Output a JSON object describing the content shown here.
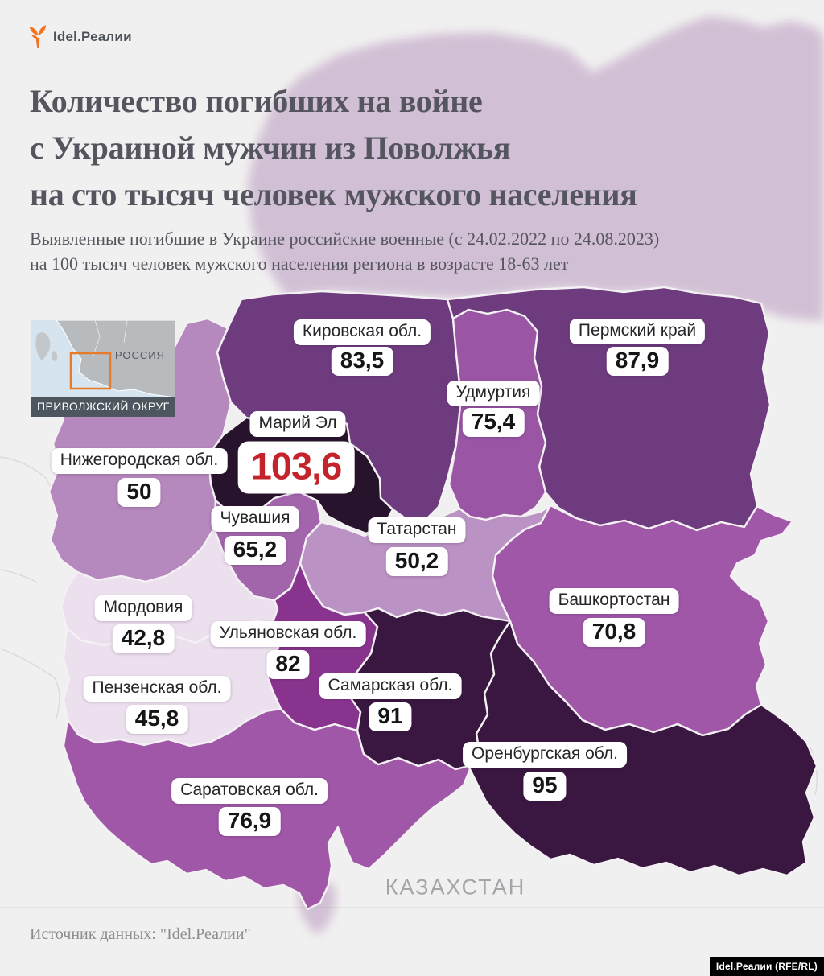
{
  "logo": {
    "text": "Idel.Реалии",
    "icon": "torch-icon",
    "icon_color": "#f4711f"
  },
  "title": {
    "lines": [
      "Количество погибших на войне",
      "с Украиной мужчин из Поволжья",
      "на сто тысяч человек мужского населения"
    ]
  },
  "subtitle": {
    "lines": [
      "Выявленные погибшие в Украине российские военные (с 24.02.2022 по 24.08.2023)",
      "на 100 тысяч человек мужского населения региона в возрасте 18-63 лет"
    ]
  },
  "inset": {
    "country_label": "РОССИЯ",
    "district_label": "ПРИВОЛЖСКИЙ ОКРУГ",
    "highlight_color": "#e87b27"
  },
  "map": {
    "regions": [
      {
        "id": "nizhegorodskaya",
        "name": "Нижегородская обл.",
        "value": "50",
        "color": "#b588be"
      },
      {
        "id": "mordovia",
        "name": "Мордовия",
        "value": "42,8",
        "color": "#ecdfee"
      },
      {
        "id": "penzenskaya",
        "name": "Пензенская обл.",
        "value": "45,8",
        "color": "#ecdfee"
      },
      {
        "id": "saratovskaya",
        "name": "Саратовская обл.",
        "value": "76,9",
        "color": "#a057a8"
      },
      {
        "id": "kirovskaya",
        "name": "Кировская обл.",
        "value": "83,5",
        "color": "#6e3c7e"
      },
      {
        "id": "permsky",
        "name": "Пермский край",
        "value": "87,9",
        "color": "#6e3c7e"
      },
      {
        "id": "udmurtia",
        "name": "Удмуртия",
        "value": "75,4",
        "color": "#9a55a4"
      },
      {
        "id": "bashkortostan",
        "name": "Башкортостан",
        "value": "70,8",
        "color": "#a057a8"
      },
      {
        "id": "tatarstan",
        "name": "Татарстан",
        "value": "50,2",
        "color": "#bb92c4"
      },
      {
        "id": "orenburgskaya",
        "name": "Оренбургская обл.",
        "value": "95",
        "color": "#391740"
      },
      {
        "id": "samarskaya",
        "name": "Самарская обл.",
        "value": "91",
        "color": "#391740"
      },
      {
        "id": "ulyanovskaya",
        "name": "Ульяновская обл.",
        "value": "82",
        "color": "#88348f"
      },
      {
        "id": "chuvashia",
        "name": "Чувашия",
        "value": "65,2",
        "color": "#a265ab"
      },
      {
        "id": "mariel",
        "name": "Марий Эл",
        "value": "103,6",
        "color": "#28132c",
        "hero": true,
        "value_color": "#c4232b"
      }
    ],
    "neighbor_label": "КАЗАХСТАН"
  },
  "chart_data": {
    "type": "choropleth",
    "title": "Количество погибших на войне с Украиной мужчин из Поволжья на сто тысяч человек мужского населения",
    "categories": [
      "Кировская обл.",
      "Пермский край",
      "Удмуртия",
      "Марий Эл",
      "Нижегородская обл.",
      "Чувашия",
      "Татарстан",
      "Башкортостан",
      "Мордовия",
      "Ульяновская обл.",
      "Пензенская обл.",
      "Самарская обл.",
      "Оренбургская обл.",
      "Саратовская обл."
    ],
    "values": [
      83.5,
      87.9,
      75.4,
      103.6,
      50,
      65.2,
      50.2,
      70.8,
      42.8,
      82,
      45.8,
      91,
      95,
      76.9
    ]
  },
  "footer": {
    "source": "Источник данных: \"Idel.Реалии\"",
    "credit": "Idel.Реалии (RFE/RL)"
  }
}
